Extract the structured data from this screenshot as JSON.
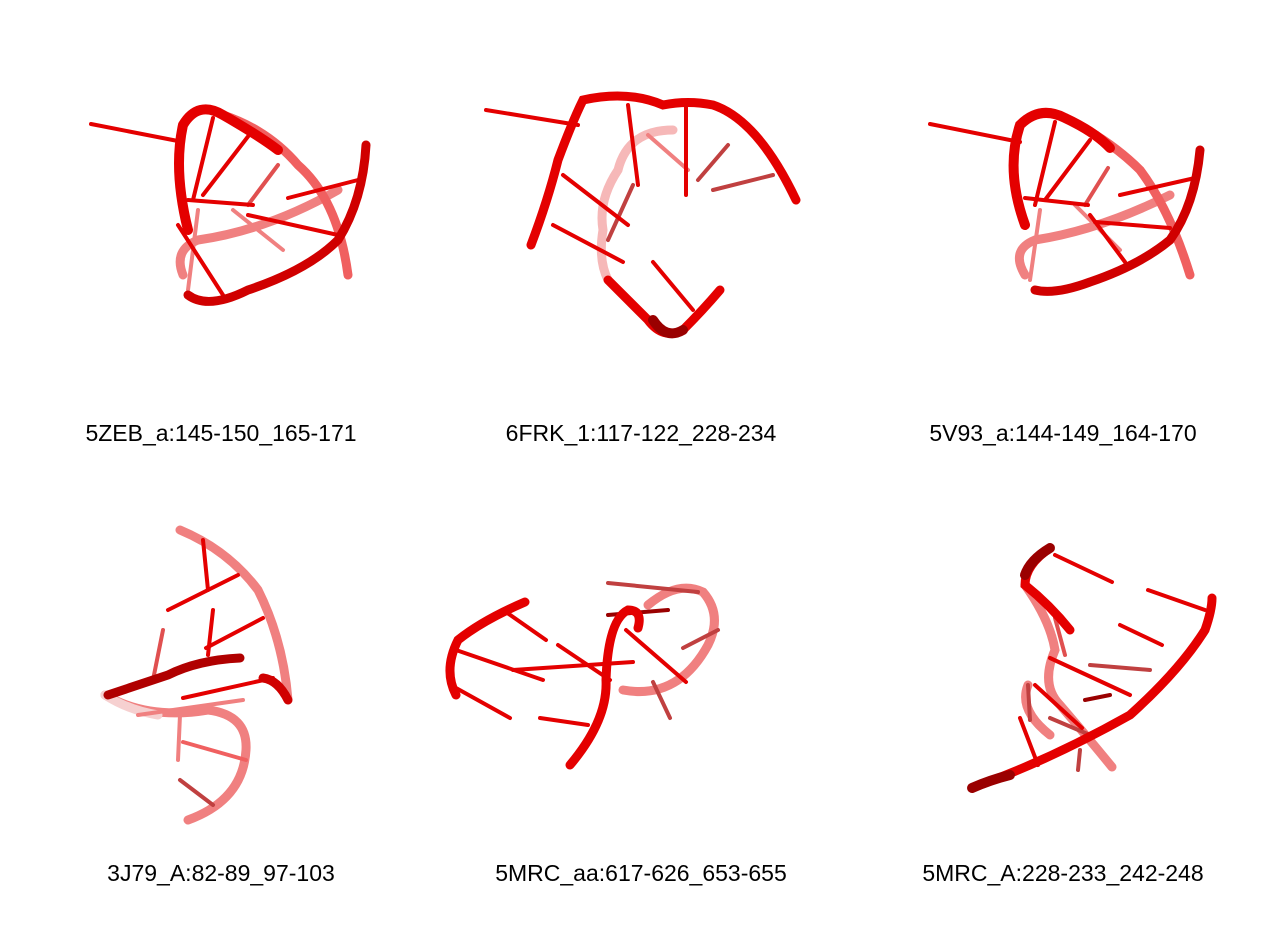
{
  "colors": {
    "strand": "#e40000",
    "strand_dark": "#9a0000",
    "strand_faded": "#f08080",
    "strand_pale": "#f6b8b8",
    "background": "#ffffff",
    "caption_text": "#000000"
  },
  "panels": [
    {
      "label": "5ZEB_a:145-150_165-171"
    },
    {
      "label": "6FRK_1:117-122_228-234"
    },
    {
      "label": "5V93_a:144-149_164-170"
    },
    {
      "label": "3J79_A:82-89_97-103"
    },
    {
      "label": "5MRC_aa:617-626_653-655"
    },
    {
      "label": "5MRC_A:228-233_242-248"
    }
  ]
}
